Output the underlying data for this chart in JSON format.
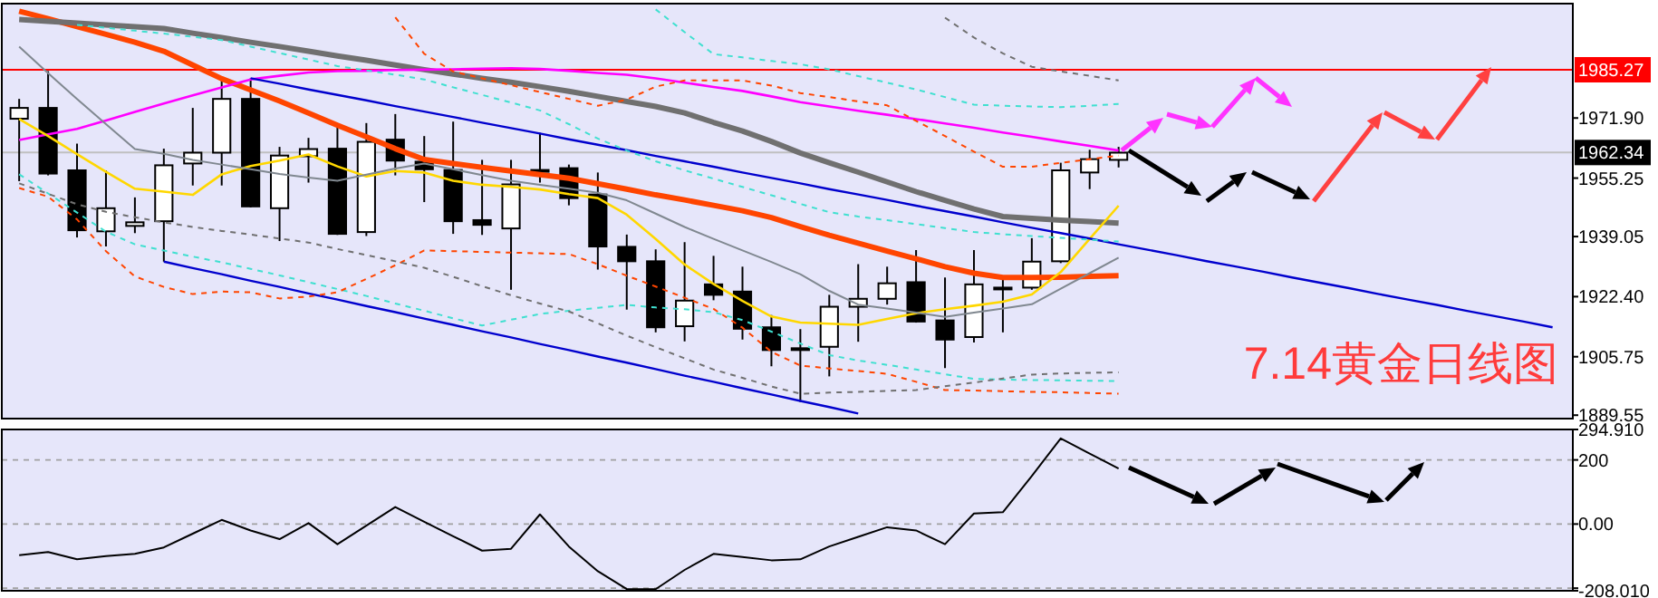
{
  "chart_data": [
    {
      "type": "candlestick",
      "categories": [
        null,
        null,
        null,
        null,
        null,
        null,
        null,
        null,
        null,
        null,
        null,
        null,
        null,
        null,
        null,
        null,
        null,
        null,
        null,
        null,
        null,
        null,
        null,
        null,
        null,
        null,
        null,
        null,
        null,
        null,
        null,
        null,
        null,
        null,
        null,
        null,
        null,
        null,
        null,
        null,
        null,
        null,
        null,
        null,
        null,
        null,
        null,
        null,
        null,
        null,
        null,
        null,
        null,
        null
      ],
      "ohlc": [
        [
          1971.7,
          1977.2,
          1954.4,
          1974.7
        ],
        [
          1974.7,
          1984.9,
          1956.0,
          1956.5
        ],
        [
          1957.4,
          1964.8,
          1938.8,
          1940.8
        ],
        [
          1940.5,
          1957.4,
          1936.3,
          1946.9
        ],
        [
          1942.0,
          1949.9,
          1940.0,
          1943.0
        ],
        [
          1943.3,
          1963.4,
          1932.1,
          1958.8
        ],
        [
          1959.3,
          1974.7,
          1953.2,
          1962.3
        ],
        [
          1962.3,
          1982.9,
          1953.2,
          1977.2
        ],
        [
          1977.2,
          1982.9,
          1947.1,
          1947.4
        ],
        [
          1946.9,
          1963.9,
          1937.8,
          1961.5
        ],
        [
          1961.3,
          1966.4,
          1954.0,
          1963.3
        ],
        [
          1963.4,
          1969.3,
          1939.5,
          1939.8
        ],
        [
          1940.3,
          1970.5,
          1939.2,
          1965.3
        ],
        [
          1965.9,
          1973.0,
          1956.0,
          1960.1
        ],
        [
          1959.8,
          1966.9,
          1948.6,
          1957.7
        ],
        [
          1957.5,
          1970.9,
          1939.8,
          1943.3
        ],
        [
          1943.6,
          1960.3,
          1939.5,
          1942.3
        ],
        [
          1941.3,
          1960.3,
          1924.3,
          1953.5
        ],
        [
          1957.0,
          1967.8,
          1954.0,
          1957.5
        ],
        [
          1958.0,
          1959.0,
          1947.7,
          1949.7
        ],
        [
          1950.7,
          1956.8,
          1929.9,
          1936.3
        ],
        [
          1936.2,
          1939.6,
          1918.8,
          1932.2
        ],
        [
          1932.2,
          1935.5,
          1912.5,
          1913.9
        ],
        [
          1914.2,
          1937.5,
          1910.0,
          1921.3
        ],
        [
          1925.8,
          1933.7,
          1921.4,
          1922.9
        ],
        [
          1923.8,
          1930.7,
          1910.5,
          1913.5
        ],
        [
          1913.9,
          1917.3,
          1903.1,
          1907.6
        ],
        [
          1908.1,
          1913.4,
          1893.2,
          1907.6
        ],
        [
          1908.5,
          1922.9,
          1900.3,
          1919.6
        ],
        [
          1919.6,
          1931.4,
          1909.9,
          1921.8
        ],
        [
          1921.8,
          1930.7,
          1920.2,
          1926.1
        ],
        [
          1926.4,
          1935.3,
          1915.2,
          1915.5
        ],
        [
          1915.8,
          1927.7,
          1902.6,
          1910.5
        ],
        [
          1911.2,
          1935.3,
          1909.7,
          1925.8
        ],
        [
          1924.9,
          1927.1,
          1912.5,
          1924.9
        ],
        [
          1924.9,
          1938.6,
          1924.3,
          1932.1
        ],
        [
          1932.2,
          1959.5,
          1931.7,
          1957.4
        ],
        [
          1956.8,
          1963.1,
          1952.2,
          1960.5
        ],
        [
          1960.3,
          1963.9,
          1958.2,
          1962.3
        ],
        null,
        null,
        null,
        null,
        null,
        null,
        null,
        null,
        null,
        null,
        null,
        null,
        null,
        null,
        null
      ],
      "colors": [
        "#ffffff",
        "#000000",
        "#000000",
        "#ffffff",
        "#ffffff",
        "#ffffff",
        "#ffffff",
        "#ffffff",
        "#000000",
        "#ffffff",
        "#ffffff",
        "#000000",
        "#ffffff",
        "#000000",
        "#000000",
        "#000000",
        "#000000",
        "#ffffff",
        "#ffffff",
        "#000000",
        "#000000",
        "#000000",
        "#000000",
        "#ffffff",
        "#000000",
        "#000000",
        "#000000",
        "#000000",
        "#ffffff",
        "#ffffff",
        "#ffffff",
        "#000000",
        "#000000",
        "#ffffff",
        "#000000",
        "#ffffff",
        "#ffffff",
        "#ffffff",
        "#ffffff",
        null,
        null,
        null,
        null,
        null,
        null,
        null,
        null,
        null,
        null,
        null,
        null,
        null,
        null,
        null
      ],
      "series": [
        {
          "type": "line",
          "color": "#ff4500",
          "line_style": "solid",
          "values": [
            2001.5,
            1999.4,
            1997.2,
            1995.1,
            1992.9,
            1990.4,
            1986.6,
            1982.8,
            1979.7,
            1976.6,
            1973.3,
            1969.9,
            1966.7,
            1963.4,
            1960.4,
            1959.3,
            1958.2,
            1957.2,
            1956.2,
            1955.2,
            1953.7,
            1952.2,
            1950.6,
            1949.2,
            1947.7,
            1946.2,
            1944.3,
            1941.8,
            1939.4,
            1937.2,
            1935.0,
            1932.9,
            1930.7,
            1928.9,
            1927.7,
            1927.7,
            1927.8,
            1928.0,
            1928.2,
            null,
            null,
            null,
            null,
            null,
            null,
            null,
            null,
            null,
            null,
            null,
            null,
            null,
            null,
            null
          ]
        },
        {
          "type": "line",
          "color": "#707070",
          "line_style": "solid",
          "values": [
            1999.2,
            1998.7,
            1998.2,
            1997.7,
            1997.2,
            1996.7,
            1995.4,
            1994.2,
            1992.9,
            1991.7,
            1990.4,
            1989.1,
            1987.9,
            1986.6,
            1985.3,
            1984.1,
            1982.9,
            1981.8,
            1980.6,
            1979.3,
            1977.9,
            1976.5,
            1975.1,
            1973.3,
            1970.7,
            1968.3,
            1965.4,
            1962.2,
            1959.5,
            1956.9,
            1954.2,
            1951.5,
            1949.1,
            1946.7,
            1944.6,
            1944.1,
            1943.6,
            1943.2,
            1942.8,
            null,
            null,
            null,
            null,
            null,
            null,
            null,
            null,
            null,
            null,
            null,
            null,
            null,
            null,
            null
          ]
        },
        {
          "type": "line",
          "color": "#ff00ff",
          "line_style": "solid",
          "values": [
            1965.8,
            1967.4,
            1968.9,
            1971.2,
            1973.6,
            1975.9,
            1978.2,
            1980.4,
            1982.6,
            1983.6,
            1984.5,
            1984.9,
            1985.0,
            1985.2,
            1985.3,
            1985.4,
            1985.6,
            1985.7,
            1985.5,
            1985.0,
            1984.4,
            1983.9,
            1982.9,
            1981.7,
            1980.5,
            1979.4,
            1977.9,
            1976.3,
            1975.1,
            1973.9,
            1972.8,
            1971.6,
            1970.4,
            1969.2,
            1967.9,
            1966.7,
            1965.4,
            1964.2,
            1962.9,
            null,
            null,
            null,
            null,
            null,
            null,
            null,
            null,
            null,
            null,
            null,
            null,
            null,
            null,
            null
          ]
        },
        {
          "type": "line",
          "color": "#ffd700",
          "line_style": "solid",
          "values": [
            1971.6,
            1966.9,
            1961.9,
            1957.0,
            1952.3,
            1951.5,
            1950.6,
            1956.3,
            1958.6,
            1960.1,
            1961.8,
            1958.5,
            1955.7,
            1957.2,
            1956.8,
            1954.5,
            1953.4,
            1952.8,
            1952.1,
            1950.8,
            1949.7,
            1945.1,
            1938.4,
            1931.3,
            1925.9,
            1921.2,
            1916.9,
            1915.2,
            1914.9,
            1914.6,
            1916.2,
            1917.8,
            1918.9,
            1919.9,
            1921.0,
            1923.0,
            1929.2,
            1938.4,
            1947.6,
            null,
            null,
            null,
            null,
            null,
            null,
            null,
            null,
            null,
            null,
            null,
            null,
            null,
            null,
            null
          ]
        },
        {
          "type": "line",
          "color": "#808890",
          "line_style": "solid",
          "values": [
            1991.7,
            1984.3,
            1977.2,
            1970.2,
            1963.3,
            1962.0,
            1960.3,
            1959.0,
            1957.7,
            1956.4,
            1955.4,
            1954.5,
            1956.2,
            1957.9,
            1959.3,
            1957.7,
            1956.1,
            1954.5,
            1953.4,
            1952.3,
            1951.2,
            1949.1,
            1945.4,
            1941.7,
            1938.4,
            1935.2,
            1932.0,
            1928.6,
            1924.0,
            1920.2,
            1919.1,
            1918.0,
            1916.8,
            1918.0,
            1919.1,
            1920.3,
            1924.6,
            1928.9,
            1933.2,
            null,
            null,
            null,
            null,
            null,
            null,
            null,
            null,
            null,
            null,
            null,
            null,
            null,
            null,
            null
          ]
        },
        {
          "type": "line",
          "color": "#0000cd",
          "line_style": "solid",
          "values": [
            null,
            null,
            null,
            null,
            null,
            null,
            null,
            null,
            1982.9,
            1981.4,
            1979.8,
            1978.3,
            1976.8,
            1975.2,
            1973.7,
            1972.2,
            1970.6,
            1969.1,
            1967.6,
            1966.0,
            1964.5,
            1963.0,
            1961.4,
            1959.9,
            1958.4,
            1956.8,
            1955.3,
            1953.8,
            1952.2,
            1950.7,
            1949.2,
            1947.6,
            1946.1,
            1944.6,
            1943.0,
            1941.5,
            1940.0,
            1938.5,
            1936.9,
            1935.4,
            1933.9,
            1932.3,
            1930.8,
            1929.3,
            1927.7,
            1926.2,
            1924.7,
            1923.1,
            1921.6,
            1920.1,
            1918.5,
            1917.0,
            1915.5,
            1913.9
          ]
        },
        {
          "type": "line",
          "color": "#0000cd",
          "line_style": "solid",
          "values": [
            null,
            null,
            null,
            null,
            null,
            1932.1,
            1930.3,
            1928.6,
            1926.8,
            1925.1,
            1923.3,
            1921.6,
            1919.8,
            1918.1,
            1916.3,
            1914.6,
            1912.8,
            1911.1,
            1909.3,
            1907.6,
            1905.8,
            1904.1,
            1902.3,
            1900.5,
            1898.8,
            1897.0,
            1895.3,
            1893.5,
            1891.8,
            1890.0,
            null,
            null,
            null,
            null,
            null,
            null,
            null,
            null,
            null,
            null,
            null,
            null,
            null,
            null,
            null,
            null,
            null,
            null,
            null,
            null,
            null,
            null,
            null,
            null
          ]
        },
        {
          "type": "line",
          "color": "#40e0d0",
          "line_style": "dashed",
          "values": [
            null,
            null,
            1997.7,
            1996.9,
            1996.1,
            1995.3,
            1994.4,
            1993.5,
            1991.7,
            1989.9,
            1988.1,
            1986.3,
            1985.1,
            1983.9,
            1982.6,
            1980.4,
            1978.3,
            1976.2,
            1974.0,
            1970.2,
            1966.2,
            1962.9,
            1959.9,
            1957.4,
            1955.1,
            1952.8,
            1950.5,
            1948.1,
            1945.8,
            1944.6,
            1943.6,
            1942.5,
            1941.4,
            1940.3,
            1939.7,
            1939.2,
            1938.7,
            1938.2,
            1937.7,
            null,
            null,
            null,
            null,
            null,
            null,
            null,
            null,
            null,
            null,
            null,
            null,
            null,
            null,
            null
          ]
        },
        {
          "type": "line",
          "color": "#40e0d0",
          "line_style": "dashed",
          "values": [
            null,
            null,
            null,
            null,
            null,
            null,
            null,
            null,
            null,
            null,
            null,
            null,
            null,
            null,
            null,
            null,
            null,
            null,
            null,
            null,
            null,
            null,
            2002.0,
            1995.7,
            1989.6,
            1988.7,
            1987.7,
            1986.8,
            1985.4,
            1983.5,
            1981.7,
            1979.8,
            1977.7,
            1975.6,
            1975.3,
            1975.1,
            1974.9,
            1975.3,
            1975.8,
            null,
            null,
            null,
            null,
            null,
            null,
            null,
            null,
            null,
            null,
            null,
            null,
            null,
            null,
            null
          ]
        },
        {
          "type": "line",
          "color": "#40e0d0",
          "line_style": "dashed",
          "values": [
            1956.3,
            1951.0,
            1945.7,
            1940.4,
            1936.9,
            1935.2,
            1933.5,
            1931.9,
            1930.1,
            1928.3,
            1926.4,
            1924.5,
            1922.6,
            1920.5,
            1918.5,
            1916.4,
            1914.4,
            1916.0,
            1917.6,
            1918.5,
            1919.3,
            1920.1,
            1919.4,
            1918.9,
            1918.1,
            1915.9,
            1912.7,
            1909.4,
            1906.2,
            1904.7,
            1903.5,
            1902.2,
            1900.9,
            1899.6,
            1899.4,
            1899.3,
            1899.2,
            1899.1,
            1899.0,
            null,
            null,
            null,
            null,
            null,
            null,
            null,
            null,
            null,
            null,
            null,
            null,
            null,
            null,
            null
          ]
        },
        {
          "type": "line",
          "color": "#ff4500",
          "line_style": "dashed",
          "values": [
            null,
            null,
            null,
            null,
            null,
            null,
            null,
            null,
            null,
            null,
            null,
            null,
            null,
            1999.8,
            1989.7,
            1984.8,
            1982.9,
            1981.0,
            1979.1,
            1977.2,
            1975.3,
            1977.0,
            1980.6,
            1982.3,
            1982.3,
            1982.3,
            1980.9,
            1978.8,
            1977.7,
            1976.5,
            1975.4,
            1971.1,
            1966.9,
            1962.6,
            1958.4,
            1958.4,
            1959.5,
            1960.5,
            1961.5,
            null,
            null,
            null,
            null,
            null,
            null,
            null,
            null,
            null,
            null,
            null,
            null,
            null,
            null,
            null
          ]
        },
        {
          "type": "line",
          "color": "#ff4500",
          "line_style": "dashed",
          "values": [
            1952.5,
            1950.1,
            1943.8,
            1935.0,
            1928.0,
            1925.1,
            1923.1,
            1923.8,
            1923.6,
            1921.9,
            1922.4,
            1923.6,
            1927.3,
            1931.1,
            1935.2,
            1935.0,
            1934.8,
            1934.6,
            1934.4,
            1934.2,
            1931.4,
            1928.2,
            1925.2,
            1922.1,
            1919.0,
            1913.8,
            1907.1,
            1903.3,
            1902.5,
            1901.8,
            1901.0,
            1898.8,
            1896.5,
            1896.4,
            1896.2,
            1896.0,
            1895.9,
            1895.7,
            1895.5,
            null,
            null,
            null,
            null,
            null,
            null,
            null,
            null,
            null,
            null,
            null,
            null,
            null,
            null,
            null
          ]
        },
        {
          "type": "line",
          "color": "#707070",
          "line_style": "dashed",
          "values": [
            null,
            null,
            null,
            null,
            null,
            null,
            null,
            null,
            null,
            null,
            null,
            null,
            null,
            null,
            null,
            null,
            null,
            null,
            null,
            null,
            null,
            null,
            null,
            null,
            null,
            null,
            null,
            null,
            null,
            null,
            null,
            null,
            1999.7,
            1994.2,
            1989.8,
            1986.1,
            1984.8,
            1983.6,
            1982.3,
            null,
            null,
            null,
            null,
            null,
            null,
            null,
            null,
            null,
            null,
            null,
            null,
            null,
            null,
            null
          ]
        },
        {
          "type": "line",
          "color": "#707070",
          "line_style": "dashed",
          "values": [
            1953.8,
            1950.9,
            1948.0,
            1945.9,
            1944.4,
            1943.0,
            1941.7,
            1940.6,
            1939.6,
            1938.5,
            1937.4,
            1935.6,
            1933.9,
            1932.2,
            1930.4,
            1927.9,
            1925.3,
            1922.8,
            1920.5,
            1918.3,
            1915.0,
            1911.6,
            1908.4,
            1905.3,
            1902.2,
            1899.9,
            1897.5,
            1895.5,
            1895.8,
            1896.0,
            1896.3,
            1896.5,
            1897.6,
            1898.6,
            1899.7,
            1900.8,
            1901.1,
            1901.3,
            1901.4,
            null,
            null,
            null,
            null,
            null,
            null,
            null,
            null,
            null,
            null,
            null,
            null,
            null,
            null,
            null
          ]
        }
      ],
      "ylim": [
        1888.6,
        2003.6
      ],
      "yticks": [
        1889.55,
        1905.75,
        {
          "value": 1922.4,
          "label": "1922.40"
        },
        1939.05,
        1955.25,
        {
          "value": 1971.9,
          "label": "1971.90"
        }
      ],
      "ref_lines": [
        {
          "axis": "y",
          "value": 1985.27,
          "label": "1985.27",
          "color": "#ff0000"
        },
        {
          "axis": "y",
          "value": 1962.34,
          "label": "1962.34",
          "color": "#c0c0c0"
        }
      ],
      "annotations": [
        "7.14黄金日线图"
      ],
      "tick_labels": "y"
    },
    {
      "type": "line",
      "categories": [
        null,
        null,
        null,
        null,
        null,
        null,
        null,
        null,
        null,
        null,
        null,
        null,
        null,
        null,
        null,
        null,
        null,
        null,
        null,
        null,
        null,
        null,
        null,
        null,
        null,
        null,
        null,
        null,
        null,
        null,
        null,
        null,
        null,
        null,
        null,
        null,
        null,
        null,
        null,
        null,
        null,
        null,
        null,
        null,
        null,
        null,
        null,
        null,
        null,
        null,
        null,
        null,
        null,
        null
      ],
      "series": [
        {
          "color": "#000000",
          "values": [
            -97,
            -87,
            -110,
            -100,
            -93,
            -73,
            -30,
            13,
            -20,
            -47,
            3,
            -63,
            -5,
            53,
            7,
            -38,
            -83,
            -77,
            30,
            -70,
            -147,
            -203,
            -203,
            -143,
            -93,
            -103,
            -113,
            -110,
            -70,
            -40,
            -10,
            -20,
            -63,
            33,
            37,
            150,
            267,
            220,
            173,
            null,
            null,
            null,
            null,
            null,
            null,
            null,
            null,
            null,
            null,
            null,
            null,
            null,
            null,
            null
          ]
        }
      ],
      "ylim": [
        -208.01,
        294.91
      ],
      "yticks": [
        {
          "value": 294.91,
          "label": "294.910"
        },
        200,
        {
          "value": 0,
          "label": "0.00"
        },
        {
          "value": -200,
          "label": null
        },
        {
          "value": -208.01,
          "label": "-208.010"
        }
      ],
      "grid": "y",
      "tick_labels": "y"
    }
  ]
}
